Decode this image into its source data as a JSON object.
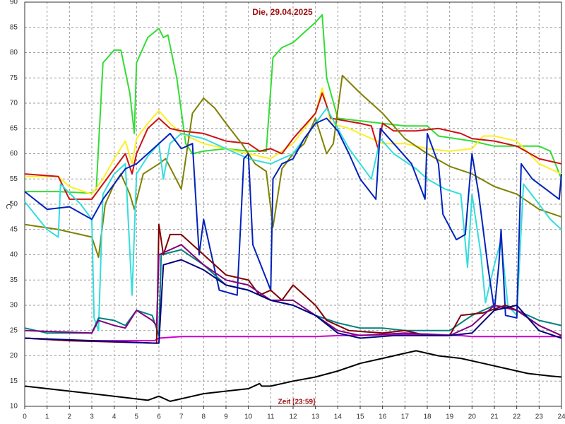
{
  "chart_data": {
    "type": "line",
    "title": "Die, 29.04.2025",
    "xlabel": "Zeit [23:59]",
    "ylabel": "°C",
    "xlim": [
      0,
      24
    ],
    "ylim": [
      10,
      90
    ],
    "xticks": [
      0,
      1,
      2,
      3,
      4,
      5,
      6,
      7,
      8,
      9,
      10,
      11,
      12,
      13,
      14,
      15,
      16,
      17,
      18,
      19,
      20,
      21,
      22,
      23,
      24
    ],
    "yticks": [
      10,
      15,
      20,
      25,
      30,
      35,
      40,
      45,
      50,
      55,
      60,
      65,
      70,
      75,
      80,
      85,
      90
    ],
    "grid": true,
    "series": [
      {
        "color": "#000000",
        "x": [
          0,
          2,
          4,
          5.5,
          6,
          6.5,
          7,
          8,
          9,
          10,
          10.5,
          10.6,
          11,
          12,
          13,
          14,
          15,
          16,
          17,
          17.5,
          18.5,
          19.5,
          20.5,
          21.5,
          22.5,
          23.5,
          24
        ],
        "values": [
          14,
          13,
          12,
          11.2,
          12,
          11,
          11.5,
          12.5,
          13,
          13.5,
          14.5,
          14,
          14,
          15,
          15.8,
          17,
          18.5,
          19.5,
          20.5,
          21,
          20,
          19.5,
          18.5,
          17.5,
          16.5,
          16,
          15.8
        ]
      },
      {
        "color": "#cc00cc",
        "x": [
          0,
          2,
          5.8,
          6,
          7,
          13,
          14,
          18,
          19.5,
          20,
          24
        ],
        "values": [
          23.5,
          23,
          23,
          23.5,
          23.8,
          23.8,
          24,
          24.3,
          24,
          23.8,
          23.8
        ]
      },
      {
        "color": "#33dd33",
        "x": [
          0,
          1.5,
          3,
          3.2,
          3.5,
          4,
          4.3,
          4.7,
          4.9,
          5,
          5.5,
          6,
          6.2,
          6.4,
          6.8,
          7.2,
          7.5,
          8,
          9,
          10,
          10.8,
          11.1,
          11.5,
          12,
          12.5,
          13,
          13.3,
          13.5,
          14,
          15,
          16,
          17,
          18,
          18.5,
          20,
          21,
          23,
          23.5,
          24
        ],
        "values": [
          52.5,
          52.5,
          52.2,
          53,
          78,
          80.5,
          80.5,
          72,
          64,
          78,
          83,
          84.8,
          83,
          83.5,
          75,
          62,
          60,
          60.5,
          61,
          60.5,
          60.5,
          79,
          81,
          82,
          84,
          86,
          87.5,
          75,
          67,
          66.5,
          66,
          65.5,
          65.5,
          63.5,
          62.5,
          61.5,
          61.5,
          60.5,
          55
        ]
      },
      {
        "color": "#ffee22",
        "x": [
          0,
          1.5,
          2,
          3,
          3.5,
          4,
          4.5,
          4.8,
          5,
          5.5,
          6,
          6.5,
          7,
          8,
          9,
          10,
          11,
          12,
          13,
          13.3,
          13.7,
          14.5,
          15.5,
          16,
          17,
          18,
          19,
          20,
          20.5,
          21,
          22,
          23,
          24
        ],
        "values": [
          55.5,
          55.5,
          53.5,
          52,
          55,
          59,
          62.5,
          58,
          63,
          66,
          68.5,
          66,
          64,
          62,
          61,
          60,
          59,
          62,
          68,
          73,
          66,
          65,
          63,
          62,
          62,
          61,
          60.5,
          61,
          63.5,
          63.5,
          62.5,
          58,
          56
        ]
      },
      {
        "color": "#cc1111",
        "x": [
          0,
          1.5,
          2,
          3,
          3.5,
          4,
          4.5,
          4.8,
          5,
          5.5,
          6,
          6.5,
          7,
          8,
          9,
          10,
          10.5,
          11,
          11.5,
          12,
          13,
          13.3,
          13.7,
          15,
          15.5,
          15.8,
          16,
          16.5,
          17.5,
          18.5,
          19.5,
          20,
          21,
          22,
          23,
          24
        ],
        "values": [
          56,
          55.5,
          51,
          51,
          54,
          57,
          60,
          56,
          60,
          65,
          67,
          65,
          64.5,
          64,
          62.5,
          62,
          60.5,
          61,
          60,
          63,
          68,
          72,
          67,
          66,
          65.5,
          61,
          66,
          64.5,
          64.5,
          65,
          64,
          63,
          62.5,
          61.5,
          59,
          58
        ]
      },
      {
        "color": "#808000",
        "x": [
          0,
          1.5,
          2.5,
          3,
          3.3,
          3.6,
          4,
          4.3,
          4.7,
          4.9,
          5.3,
          6,
          6.3,
          7,
          7.5,
          8,
          8.5,
          9,
          9.7,
          10.3,
          10.8,
          11.1,
          11.5,
          12,
          12.5,
          13,
          13.5,
          13.8,
          14.2,
          15,
          16,
          17,
          18,
          19,
          20,
          21,
          22,
          23,
          24
        ],
        "values": [
          46,
          45,
          44,
          43.5,
          39.5,
          50,
          54,
          56,
          52,
          49,
          56,
          58,
          59,
          53,
          68,
          71,
          69,
          66,
          62,
          58,
          56.5,
          45.5,
          57,
          60,
          62,
          67,
          60,
          62,
          75.5,
          72,
          68,
          63,
          60,
          57.5,
          56,
          53.5,
          52,
          49,
          47.5
        ]
      },
      {
        "color": "#33dddd",
        "x": [
          0,
          1,
          1.5,
          1.6,
          2.5,
          3,
          3.1,
          3.3,
          3.5,
          4,
          4.5,
          4.8,
          5,
          5.5,
          6,
          6.2,
          6.5,
          7,
          8,
          9,
          10,
          11,
          12,
          13,
          13.5,
          14,
          14.5,
          15,
          15.5,
          15.9,
          16.5,
          17.5,
          18,
          18.8,
          19.5,
          19.8,
          20,
          20.4,
          20.6,
          21,
          21.3,
          21.6,
          22,
          22.3,
          23,
          23.5,
          24
        ],
        "values": [
          50.5,
          45,
          43.5,
          54,
          50,
          47,
          27.5,
          25,
          52,
          56,
          58,
          32,
          56,
          59.5,
          62,
          55,
          62,
          64,
          63,
          61,
          59,
          58,
          60,
          66,
          69,
          65,
          61,
          58,
          55,
          63,
          60,
          57,
          55,
          53,
          52,
          37.5,
          52,
          40,
          30.5,
          38,
          43,
          30,
          28,
          54,
          50,
          47,
          45
        ]
      },
      {
        "color": "#0022bb",
        "x": [
          0,
          1,
          2,
          3,
          3.5,
          4.5,
          5,
          6,
          6.5,
          7,
          7.5,
          7.8,
          8,
          8.7,
          9.5,
          9.8,
          10,
          10.2,
          11,
          11.1,
          11.5,
          12,
          12.5,
          13,
          13.5,
          14,
          14.5,
          15,
          15.7,
          15.9,
          16.5,
          17.3,
          17.9,
          18,
          18.5,
          18.7,
          19.3,
          19.7,
          20,
          20.3,
          20.7,
          21,
          21.2,
          21.3,
          21.5,
          22,
          22.2,
          22.7,
          23.3,
          23.9,
          24
        ],
        "values": [
          52.5,
          49,
          49.5,
          47,
          51,
          57,
          58,
          62,
          64,
          61,
          62,
          40,
          47,
          33,
          32,
          59,
          60,
          42,
          33,
          55,
          58,
          59,
          63,
          66,
          67,
          64.5,
          60,
          55,
          51,
          65,
          62,
          58,
          51,
          64,
          58,
          48,
          43,
          44,
          60,
          52,
          38,
          29,
          38,
          45,
          28,
          27.5,
          58,
          55,
          53,
          51,
          56
        ]
      },
      {
        "color": "#008080",
        "x": [
          0,
          1,
          3,
          3.3,
          4,
          4.5,
          5,
          5.7,
          6,
          6.1,
          7,
          8,
          9,
          10,
          11,
          12,
          13,
          14,
          15,
          16,
          17,
          19,
          20,
          21,
          22,
          23,
          24
        ],
        "values": [
          25.5,
          24.5,
          24.5,
          27.5,
          27,
          26,
          29,
          28,
          24,
          40,
          41,
          38,
          34,
          33,
          31,
          30,
          28,
          26.5,
          25.5,
          25.5,
          25,
          25,
          28,
          30,
          29,
          27,
          26
        ]
      },
      {
        "color": "#800000",
        "x": [
          0,
          2,
          5.9,
          6,
          6.2,
          6.5,
          7,
          8,
          9,
          10,
          10.5,
          11,
          11.5,
          12,
          13,
          13.5,
          14.5,
          16,
          17,
          18,
          19,
          19.5,
          20.5,
          21.5,
          22,
          23,
          24
        ],
        "values": [
          23.5,
          23,
          22.5,
          46,
          40,
          44,
          44,
          40,
          36,
          35,
          32,
          33,
          31,
          34,
          30,
          27,
          25,
          24.5,
          25,
          24,
          24,
          28,
          28.5,
          30,
          29,
          26,
          24
        ]
      },
      {
        "color": "#800080",
        "x": [
          0,
          3,
          3.3,
          4,
          4.5,
          5,
          5.7,
          5.9,
          6,
          7,
          8,
          9,
          10,
          11,
          12,
          13,
          14,
          15,
          17,
          19,
          20,
          21,
          22,
          23,
          24
        ],
        "values": [
          25,
          24.5,
          27,
          26,
          25.5,
          29,
          27,
          26,
          40,
          42,
          38,
          35,
          34,
          31,
          31,
          28,
          25,
          24,
          24.5,
          24,
          26,
          30,
          29,
          26,
          24
        ]
      },
      {
        "color": "#000080",
        "x": [
          0,
          3,
          5.8,
          6,
          6.2,
          7,
          8,
          9,
          10,
          11,
          12,
          13,
          14,
          15,
          16.5,
          19,
          20,
          21,
          22,
          23,
          24
        ],
        "values": [
          23.5,
          23,
          22.5,
          22.5,
          38,
          39,
          37,
          34,
          33,
          31,
          30,
          28,
          24.5,
          23.5,
          24,
          24,
          24.5,
          29,
          30,
          25,
          23.5
        ]
      }
    ]
  }
}
